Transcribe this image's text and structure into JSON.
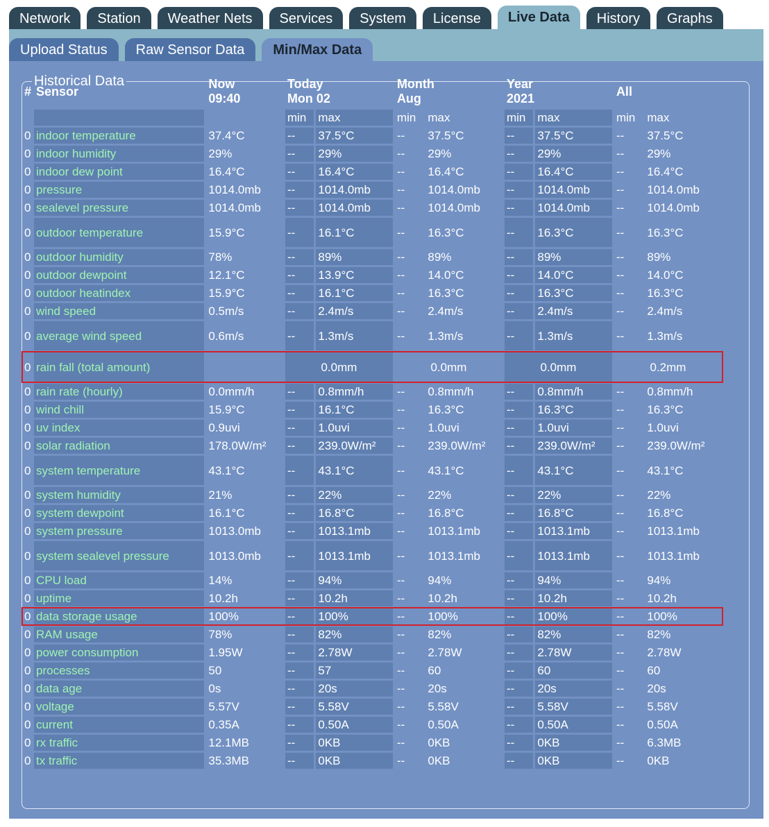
{
  "main_tabs": [
    {
      "label": "Network",
      "active": false
    },
    {
      "label": "Station",
      "active": false
    },
    {
      "label": "Weather Nets",
      "active": false
    },
    {
      "label": "Services",
      "active": false
    },
    {
      "label": "System",
      "active": false
    },
    {
      "label": "License",
      "active": false
    },
    {
      "label": "Live Data",
      "active": true
    },
    {
      "label": "History",
      "active": false
    },
    {
      "label": "Graphs",
      "active": false
    }
  ],
  "sub_tabs": [
    {
      "label": "Upload Status",
      "active": false
    },
    {
      "label": "Raw Sensor Data",
      "active": false
    },
    {
      "label": "Min/Max Data",
      "active": true
    }
  ],
  "panel": {
    "legend": "Historical Data"
  },
  "table": {
    "headers": {
      "num": "#",
      "sensor": "Sensor",
      "now_label": "Now",
      "now_time": "09:40",
      "today_label": "Today",
      "today_date": "Mon 02",
      "month_label": "Month",
      "month_name": "Aug",
      "year_label": "Year",
      "year_value": "2021",
      "all_label": "All",
      "min": "min",
      "max": "max"
    },
    "rows": [
      {
        "n": "0",
        "sensor": "indoor temperature",
        "now": "37.4°C",
        "v": [
          "--",
          "37.5°C",
          "--",
          "37.5°C",
          "--",
          "37.5°C",
          "--",
          "37.5°C"
        ]
      },
      {
        "n": "0",
        "sensor": "indoor humidity",
        "now": "29%",
        "v": [
          "--",
          "29%",
          "--",
          "29%",
          "--",
          "29%",
          "--",
          "29%"
        ]
      },
      {
        "n": "0",
        "sensor": "indoor dew point",
        "now": "16.4°C",
        "v": [
          "--",
          "16.4°C",
          "--",
          "16.4°C",
          "--",
          "16.4°C",
          "--",
          "16.4°C"
        ]
      },
      {
        "n": "0",
        "sensor": "pressure",
        "now": "1014.0mb",
        "v": [
          "--",
          "1014.0mb",
          "--",
          "1014.0mb",
          "--",
          "1014.0mb",
          "--",
          "1014.0mb"
        ]
      },
      {
        "n": "0",
        "sensor": "sealevel pressure",
        "now": "1014.0mb",
        "v": [
          "--",
          "1014.0mb",
          "--",
          "1014.0mb",
          "--",
          "1014.0mb",
          "--",
          "1014.0mb"
        ]
      },
      {
        "n": "0",
        "sensor": "outdoor temperature",
        "now": "15.9°C",
        "v": [
          "--",
          "16.1°C",
          "--",
          "16.3°C",
          "--",
          "16.3°C",
          "--",
          "16.3°C"
        ],
        "tall": true
      },
      {
        "n": "0",
        "sensor": "outdoor humidity",
        "now": "78%",
        "v": [
          "--",
          "89%",
          "--",
          "89%",
          "--",
          "89%",
          "--",
          "89%"
        ]
      },
      {
        "n": "0",
        "sensor": "outdoor dewpoint",
        "now": "12.1°C",
        "v": [
          "--",
          "13.9°C",
          "--",
          "14.0°C",
          "--",
          "14.0°C",
          "--",
          "14.0°C"
        ]
      },
      {
        "n": "0",
        "sensor": "outdoor heatindex",
        "now": "15.9°C",
        "v": [
          "--",
          "16.1°C",
          "--",
          "16.3°C",
          "--",
          "16.3°C",
          "--",
          "16.3°C"
        ]
      },
      {
        "n": "0",
        "sensor": "wind speed",
        "now": "0.5m/s",
        "v": [
          "--",
          "2.4m/s",
          "--",
          "2.4m/s",
          "--",
          "2.4m/s",
          "--",
          "2.4m/s"
        ]
      },
      {
        "n": "0",
        "sensor": "average wind speed",
        "now": "0.6m/s",
        "v": [
          "--",
          "1.3m/s",
          "--",
          "1.3m/s",
          "--",
          "1.3m/s",
          "--",
          "1.3m/s"
        ],
        "tall": true
      },
      {
        "n": "0",
        "sensor": "rain fall (total amount)",
        "now": "",
        "span": [
          "0.0mm",
          "0.0mm",
          "0.0mm",
          "0.2mm"
        ],
        "tall": true,
        "highlight": true
      },
      {
        "n": "0",
        "sensor": "rain rate (hourly)",
        "now": "0.0mm/h",
        "v": [
          "--",
          "0.8mm/h",
          "--",
          "0.8mm/h",
          "--",
          "0.8mm/h",
          "--",
          "0.8mm/h"
        ]
      },
      {
        "n": "0",
        "sensor": "wind chill",
        "now": "15.9°C",
        "v": [
          "--",
          "16.1°C",
          "--",
          "16.3°C",
          "--",
          "16.3°C",
          "--",
          "16.3°C"
        ]
      },
      {
        "n": "0",
        "sensor": "uv index",
        "now": "0.9uvi",
        "v": [
          "--",
          "1.0uvi",
          "--",
          "1.0uvi",
          "--",
          "1.0uvi",
          "--",
          "1.0uvi"
        ]
      },
      {
        "n": "0",
        "sensor": "solar radiation",
        "now": "178.0W/m²",
        "v": [
          "--",
          "239.0W/m²",
          "--",
          "239.0W/m²",
          "--",
          "239.0W/m²",
          "--",
          "239.0W/m²"
        ]
      },
      {
        "n": "0",
        "sensor": "system temperature",
        "now": "43.1°C",
        "v": [
          "--",
          "43.1°C",
          "--",
          "43.1°C",
          "--",
          "43.1°C",
          "--",
          "43.1°C"
        ],
        "tall": true
      },
      {
        "n": "0",
        "sensor": "system humidity",
        "now": "21%",
        "v": [
          "--",
          "22%",
          "--",
          "22%",
          "--",
          "22%",
          "--",
          "22%"
        ]
      },
      {
        "n": "0",
        "sensor": "system dewpoint",
        "now": "16.1°C",
        "v": [
          "--",
          "16.8°C",
          "--",
          "16.8°C",
          "--",
          "16.8°C",
          "--",
          "16.8°C"
        ]
      },
      {
        "n": "0",
        "sensor": "system pressure",
        "now": "1013.0mb",
        "v": [
          "--",
          "1013.1mb",
          "--",
          "1013.1mb",
          "--",
          "1013.1mb",
          "--",
          "1013.1mb"
        ]
      },
      {
        "n": "0",
        "sensor": "system sealevel pressure",
        "now": "1013.0mb",
        "v": [
          "--",
          "1013.1mb",
          "--",
          "1013.1mb",
          "--",
          "1013.1mb",
          "--",
          "1013.1mb"
        ],
        "tall": true
      },
      {
        "n": "0",
        "sensor": "CPU load",
        "now": "14%",
        "v": [
          "--",
          "94%",
          "--",
          "94%",
          "--",
          "94%",
          "--",
          "94%"
        ]
      },
      {
        "n": "0",
        "sensor": "uptime",
        "now": "10.2h",
        "v": [
          "--",
          "10.2h",
          "--",
          "10.2h",
          "--",
          "10.2h",
          "--",
          "10.2h"
        ]
      },
      {
        "n": "0",
        "sensor": "data storage usage",
        "now": "100%",
        "v": [
          "--",
          "100%",
          "--",
          "100%",
          "--",
          "100%",
          "--",
          "100%"
        ],
        "highlight": true
      },
      {
        "n": "0",
        "sensor": "RAM usage",
        "now": "78%",
        "v": [
          "--",
          "82%",
          "--",
          "82%",
          "--",
          "82%",
          "--",
          "82%"
        ]
      },
      {
        "n": "0",
        "sensor": "power consumption",
        "now": "1.95W",
        "v": [
          "--",
          "2.78W",
          "--",
          "2.78W",
          "--",
          "2.78W",
          "--",
          "2.78W"
        ]
      },
      {
        "n": "0",
        "sensor": "processes",
        "now": "50",
        "v": [
          "--",
          "57",
          "--",
          "60",
          "--",
          "60",
          "--",
          "60"
        ]
      },
      {
        "n": "0",
        "sensor": "data age",
        "now": "0s",
        "v": [
          "--",
          "20s",
          "--",
          "20s",
          "--",
          "20s",
          "--",
          "20s"
        ]
      },
      {
        "n": "0",
        "sensor": "voltage",
        "now": "5.57V",
        "v": [
          "--",
          "5.58V",
          "--",
          "5.58V",
          "--",
          "5.58V",
          "--",
          "5.58V"
        ]
      },
      {
        "n": "0",
        "sensor": "current",
        "now": "0.35A",
        "v": [
          "--",
          "0.50A",
          "--",
          "0.50A",
          "--",
          "0.50A",
          "--",
          "0.50A"
        ]
      },
      {
        "n": "0",
        "sensor": "rx traffic",
        "now": "12.1MB",
        "v": [
          "--",
          "0KB",
          "--",
          "0KB",
          "--",
          "0KB",
          "--",
          "6.3MB"
        ]
      },
      {
        "n": "0",
        "sensor": "tx traffic",
        "now": "35.3MB",
        "v": [
          "--",
          "0KB",
          "--",
          "0KB",
          "--",
          "0KB",
          "--",
          "0KB"
        ]
      }
    ]
  },
  "colors": {
    "tab_dark": "#2f4858",
    "tab_light": "#8ab6c7",
    "panel_bg": "#7391c3",
    "cell_dark": "#5f7fb0",
    "sensor_text": "#9ff3b2",
    "highlight_border": "#d4202a"
  }
}
